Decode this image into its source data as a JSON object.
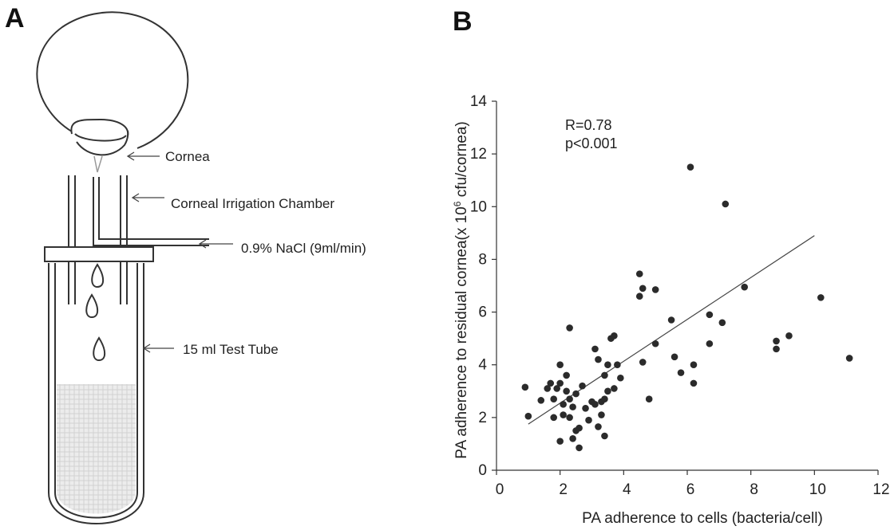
{
  "panels": {
    "a": "A",
    "b": "B"
  },
  "diagram": {
    "labels": {
      "cornea": "Cornea",
      "chamber": "Corneal Irrigation Chamber",
      "nacl": "0.9% NaCl (9ml/min)",
      "tube": "15 ml Test Tube"
    }
  },
  "chart_data": {
    "type": "scatter",
    "xlabel": "PA adherence to cells (bacteria/cell)",
    "ylabel_main": "PA adherence to residual cornea(x 10",
    "ylabel_sup": "6",
    "ylabel_end": " cfu/cornea)",
    "xlim": [
      0,
      12
    ],
    "ylim": [
      0,
      14
    ],
    "x_ticks": [
      0,
      2,
      4,
      6,
      8,
      10,
      12
    ],
    "y_ticks": [
      0,
      2,
      4,
      6,
      8,
      10,
      12,
      14
    ],
    "annotation": [
      "R=0.78",
      "p<0.001"
    ],
    "trendline": {
      "x": [
        1.0,
        10.0
      ],
      "y": [
        1.75,
        8.9
      ]
    },
    "points": [
      [
        0.9,
        3.15
      ],
      [
        1.0,
        2.05
      ],
      [
        1.4,
        2.65
      ],
      [
        1.6,
        3.1
      ],
      [
        1.7,
        3.3
      ],
      [
        1.8,
        2.7
      ],
      [
        1.8,
        2.0
      ],
      [
        1.9,
        3.1
      ],
      [
        2.0,
        4.0
      ],
      [
        2.0,
        3.3
      ],
      [
        2.0,
        1.1
      ],
      [
        2.1,
        2.5
      ],
      [
        2.1,
        2.1
      ],
      [
        2.2,
        3.6
      ],
      [
        2.2,
        3.0
      ],
      [
        2.3,
        5.4
      ],
      [
        2.3,
        2.7
      ],
      [
        2.3,
        2.0
      ],
      [
        2.4,
        2.4
      ],
      [
        2.4,
        1.2
      ],
      [
        2.5,
        2.9
      ],
      [
        2.5,
        1.5
      ],
      [
        2.6,
        1.6
      ],
      [
        2.6,
        0.85
      ],
      [
        2.7,
        3.2
      ],
      [
        2.8,
        2.35
      ],
      [
        2.9,
        1.9
      ],
      [
        3.0,
        2.6
      ],
      [
        3.1,
        4.6
      ],
      [
        3.1,
        2.5
      ],
      [
        3.2,
        4.2
      ],
      [
        3.2,
        1.65
      ],
      [
        3.3,
        2.1
      ],
      [
        3.3,
        2.6
      ],
      [
        3.4,
        3.6
      ],
      [
        3.4,
        2.7
      ],
      [
        3.4,
        1.3
      ],
      [
        3.5,
        3.0
      ],
      [
        3.5,
        4.0
      ],
      [
        3.6,
        5.0
      ],
      [
        3.7,
        5.1
      ],
      [
        3.7,
        3.1
      ],
      [
        3.8,
        4.0
      ],
      [
        3.9,
        3.5
      ],
      [
        4.5,
        7.45
      ],
      [
        4.5,
        6.6
      ],
      [
        4.6,
        6.9
      ],
      [
        4.6,
        4.1
      ],
      [
        4.8,
        2.7
      ],
      [
        5.0,
        6.85
      ],
      [
        5.0,
        4.8
      ],
      [
        5.5,
        5.7
      ],
      [
        5.6,
        4.3
      ],
      [
        5.8,
        3.7
      ],
      [
        6.1,
        11.5
      ],
      [
        6.2,
        4.0
      ],
      [
        6.2,
        3.3
      ],
      [
        6.7,
        5.9
      ],
      [
        6.7,
        4.8
      ],
      [
        7.1,
        5.6
      ],
      [
        7.2,
        10.1
      ],
      [
        7.8,
        6.95
      ],
      [
        8.8,
        4.9
      ],
      [
        8.8,
        4.6
      ],
      [
        9.2,
        5.1
      ],
      [
        10.2,
        6.55
      ],
      [
        11.1,
        4.25
      ]
    ]
  }
}
